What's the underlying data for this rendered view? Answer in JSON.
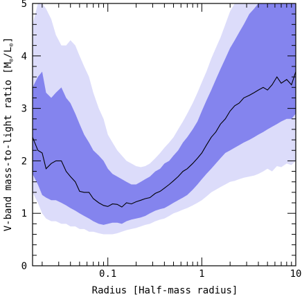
{
  "chart_data": {
    "type": "area",
    "xlabel": "Radius [Half-mass radius]",
    "ylabel_main": "V-band mass-to-light ratio [M",
    "ylabel_sun_symbol": "⊙",
    "ylabel_sep": "/L",
    "ylabel_close": "]",
    "x_scale": "log",
    "xlim": [
      0.0158,
      10
    ],
    "ylim": [
      0,
      5
    ],
    "x_ticks": [
      {
        "value": 0.1,
        "label": "0.1"
      },
      {
        "value": 1,
        "label": "1"
      },
      {
        "value": 10,
        "label": "10"
      }
    ],
    "y_ticks": [
      {
        "value": 0,
        "label": "0"
      },
      {
        "value": 1,
        "label": "1"
      },
      {
        "value": 2,
        "label": "2"
      },
      {
        "value": 3,
        "label": "3"
      },
      {
        "value": 4,
        "label": "4"
      },
      {
        "value": 5,
        "label": "5"
      }
    ],
    "colors": {
      "outer_band": "#dcdcfa",
      "inner_band": "#8484ee",
      "median_line": "#000000",
      "axes": "#000000"
    },
    "x": [
      0.0158,
      0.018,
      0.02,
      0.022,
      0.025,
      0.028,
      0.032,
      0.036,
      0.04,
      0.045,
      0.05,
      0.056,
      0.063,
      0.07,
      0.08,
      0.09,
      0.1,
      0.112,
      0.126,
      0.141,
      0.158,
      0.178,
      0.2,
      0.224,
      0.25,
      0.28,
      0.32,
      0.36,
      0.4,
      0.45,
      0.5,
      0.56,
      0.63,
      0.7,
      0.8,
      0.9,
      1.0,
      1.12,
      1.26,
      1.41,
      1.58,
      1.78,
      2.0,
      2.24,
      2.5,
      2.8,
      3.2,
      3.6,
      4.0,
      4.5,
      5.0,
      5.6,
      6.3,
      7.0,
      8.0,
      9.0,
      10.0
    ],
    "series": [
      {
        "role": "outer_band",
        "lower": [
          1.4,
          1.2,
          1.0,
          0.9,
          0.85,
          0.85,
          0.8,
          0.8,
          0.75,
          0.75,
          0.7,
          0.7,
          0.65,
          0.65,
          0.62,
          0.6,
          0.6,
          0.6,
          0.62,
          0.65,
          0.68,
          0.7,
          0.72,
          0.75,
          0.78,
          0.8,
          0.85,
          0.88,
          0.9,
          0.95,
          1.0,
          1.03,
          1.07,
          1.1,
          1.15,
          1.2,
          1.25,
          1.32,
          1.4,
          1.45,
          1.5,
          1.55,
          1.6,
          1.62,
          1.65,
          1.68,
          1.7,
          1.72,
          1.75,
          1.8,
          1.85,
          1.8,
          1.9,
          1.88,
          1.95,
          1.92,
          2.0
        ],
        "upper": [
          4.6,
          5.0,
          5.0,
          4.9,
          4.7,
          4.4,
          4.2,
          4.2,
          4.3,
          4.2,
          4.0,
          3.8,
          3.6,
          3.3,
          3.0,
          2.8,
          2.5,
          2.35,
          2.2,
          2.1,
          2.0,
          1.95,
          1.9,
          1.88,
          1.9,
          1.95,
          2.05,
          2.15,
          2.25,
          2.35,
          2.45,
          2.6,
          2.75,
          2.9,
          3.1,
          3.3,
          3.5,
          3.7,
          3.95,
          4.15,
          4.35,
          4.6,
          4.85,
          5.0,
          5.0,
          5.0,
          5.0,
          5.0,
          5.0,
          5.0,
          5.0,
          5.0,
          5.0,
          5.0,
          5.0,
          5.0,
          5.0
        ]
      },
      {
        "role": "inner_band",
        "lower": [
          1.75,
          1.55,
          1.35,
          1.3,
          1.25,
          1.25,
          1.2,
          1.15,
          1.1,
          1.05,
          1.0,
          0.95,
          0.9,
          0.85,
          0.8,
          0.78,
          0.8,
          0.82,
          0.82,
          0.8,
          0.85,
          0.88,
          0.9,
          0.92,
          0.95,
          1.0,
          1.05,
          1.08,
          1.1,
          1.15,
          1.2,
          1.25,
          1.3,
          1.35,
          1.45,
          1.55,
          1.65,
          1.75,
          1.85,
          1.95,
          2.05,
          2.15,
          2.2,
          2.25,
          2.3,
          2.35,
          2.4,
          2.45,
          2.5,
          2.55,
          2.6,
          2.65,
          2.7,
          2.75,
          2.8,
          2.8,
          2.9
        ],
        "upper": [
          3.4,
          3.6,
          3.7,
          3.3,
          3.2,
          3.3,
          3.4,
          3.2,
          3.1,
          2.9,
          2.7,
          2.5,
          2.35,
          2.2,
          2.1,
          2.0,
          1.85,
          1.75,
          1.7,
          1.65,
          1.6,
          1.55,
          1.55,
          1.6,
          1.65,
          1.7,
          1.8,
          1.85,
          1.95,
          2.0,
          2.1,
          2.2,
          2.35,
          2.45,
          2.6,
          2.75,
          2.95,
          3.15,
          3.35,
          3.55,
          3.75,
          3.95,
          4.15,
          4.3,
          4.45,
          4.6,
          4.8,
          4.9,
          5.0,
          5.0,
          5.0,
          5.0,
          5.0,
          5.0,
          5.0,
          5.0,
          5.0
        ]
      },
      {
        "role": "median_line",
        "values": [
          2.45,
          2.2,
          2.15,
          1.85,
          1.95,
          2.0,
          2.0,
          1.8,
          1.7,
          1.6,
          1.42,
          1.4,
          1.4,
          1.28,
          1.2,
          1.15,
          1.13,
          1.18,
          1.17,
          1.12,
          1.2,
          1.18,
          1.22,
          1.25,
          1.28,
          1.3,
          1.38,
          1.42,
          1.48,
          1.55,
          1.62,
          1.7,
          1.8,
          1.85,
          1.95,
          2.05,
          2.15,
          2.3,
          2.45,
          2.55,
          2.7,
          2.8,
          2.95,
          3.05,
          3.1,
          3.2,
          3.25,
          3.3,
          3.35,
          3.4,
          3.35,
          3.45,
          3.6,
          3.48,
          3.55,
          3.45,
          3.7
        ]
      }
    ]
  }
}
